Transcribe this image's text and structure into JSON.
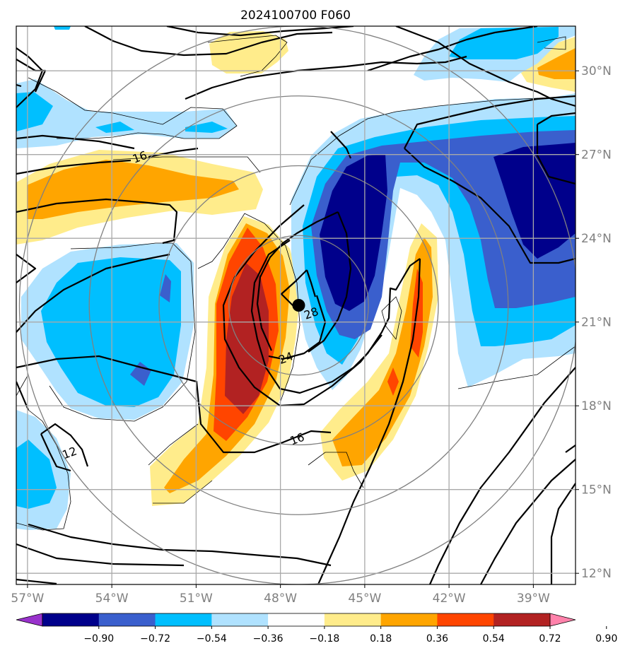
{
  "title": "2024100700 F060",
  "map": {
    "lon_range": [
      -57.4,
      -37.5
    ],
    "lat_range": [
      11.6,
      31.6
    ],
    "x_ticks": [
      {
        "lon": -57,
        "label": "57°W"
      },
      {
        "lon": -54,
        "label": "54°W"
      },
      {
        "lon": -51,
        "label": "51°W"
      },
      {
        "lon": -48,
        "label": "48°W"
      },
      {
        "lon": -45,
        "label": "45°W"
      },
      {
        "lon": -42,
        "label": "42°W"
      },
      {
        "lon": -39,
        "label": "39°W"
      }
    ],
    "y_ticks": [
      {
        "lat": 30,
        "label": "30°N"
      },
      {
        "lat": 27,
        "label": "27°N"
      },
      {
        "lat": 24,
        "label": "24°N"
      },
      {
        "lat": 21,
        "label": "21°N"
      },
      {
        "lat": 18,
        "label": "18°N"
      },
      {
        "lat": 15,
        "label": "15°N"
      },
      {
        "lat": 12,
        "label": "12°N"
      }
    ],
    "grid": true,
    "storm_center": {
      "lon": -47.35,
      "lat": 21.6
    },
    "range_rings_deg": [
      2.5,
      5,
      7.5,
      10
    ],
    "contour_labels": [
      {
        "text": "16",
        "lon": -53.0,
        "lat": 26.9
      },
      {
        "text": "12",
        "lon": -55.5,
        "lat": 16.3
      },
      {
        "text": "16",
        "lon": -47.4,
        "lat": 16.8
      },
      {
        "text": "24",
        "lon": -47.8,
        "lat": 19.7
      },
      {
        "text": "28",
        "lon": -46.9,
        "lat": 21.3
      }
    ]
  },
  "colorbar": {
    "boundaries": [
      "-0.90",
      "-0.72",
      "-0.54",
      "-0.36",
      "-0.18",
      "0.18",
      "0.36",
      "0.54",
      "0.72",
      "0.90"
    ],
    "colors": [
      "#9932cc",
      "#00008b",
      "#3a5fcd",
      "#00bfff",
      "#b0e2ff",
      "#ffffff",
      "#ffec8b",
      "#ffa500",
      "#ff4500",
      "#b22222",
      "#ff82ab"
    ],
    "extend": "both"
  },
  "chart_data": {
    "type": "heatmap",
    "title": "2024100700 F060",
    "x_ticks": [
      "57°W",
      "54°W",
      "51°W",
      "48°W",
      "45°W",
      "42°W",
      "39°W"
    ],
    "y_ticks": [
      "30°N",
      "27°N",
      "24°N",
      "21°N",
      "18°N",
      "15°N",
      "12°N"
    ],
    "colorbar_levels": [
      -0.9,
      -0.72,
      -0.54,
      -0.36,
      -0.18,
      0.18,
      0.36,
      0.54,
      0.72,
      0.9
    ],
    "contour_labels": [
      16,
      12,
      16,
      24,
      28
    ]
  }
}
